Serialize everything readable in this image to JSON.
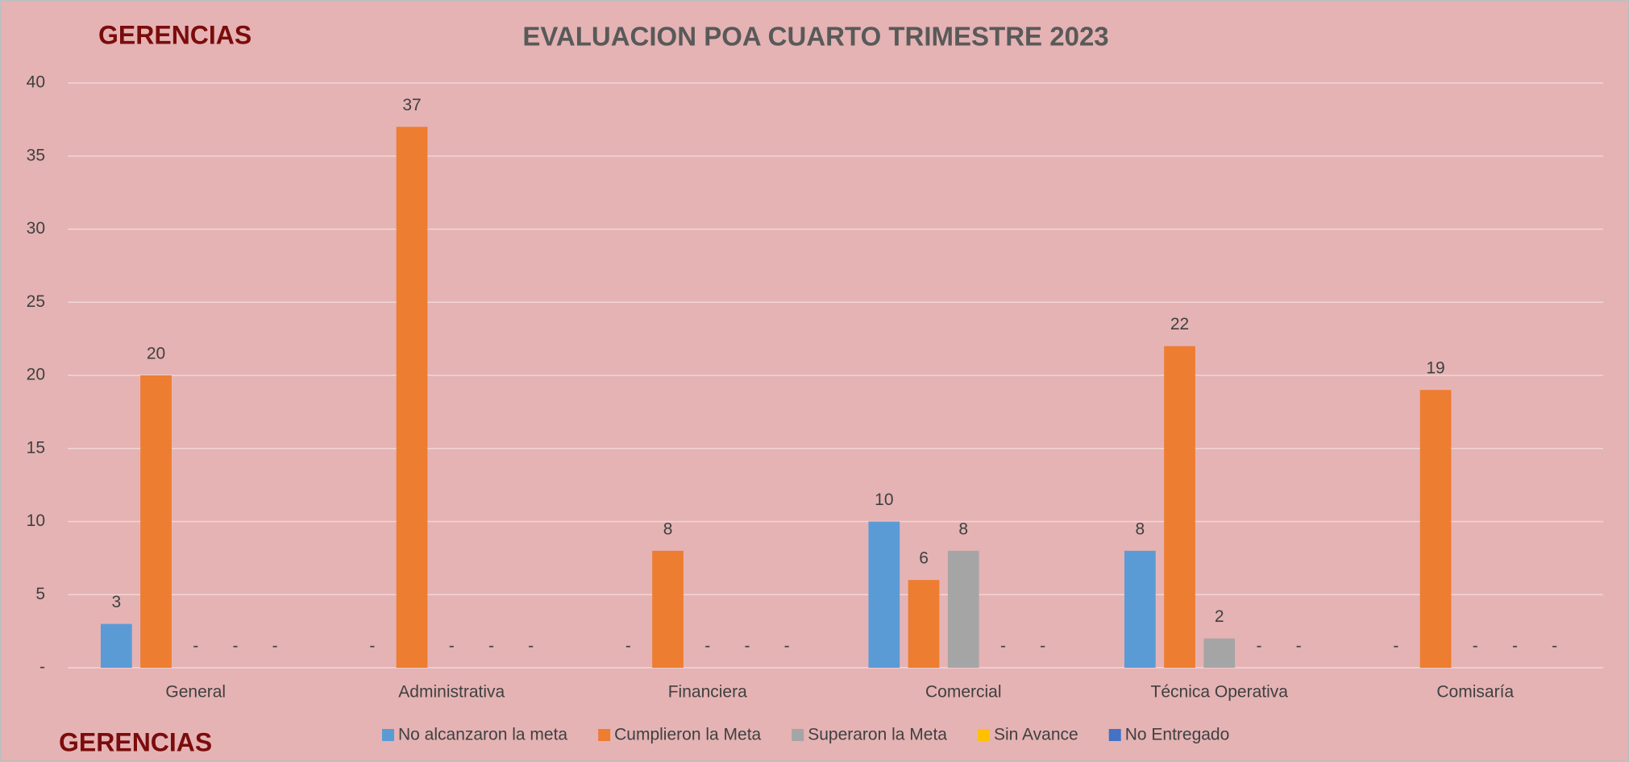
{
  "chart_data": {
    "type": "bar",
    "title": "EVALUACION POA CUARTO TRIMESTRE 2023",
    "annotations": [
      "GERENCIAS",
      "GERENCIAS"
    ],
    "categories": [
      "General",
      "Administrativa",
      "Financiera",
      "Comercial",
      "Técnica Operativa",
      "Comisaría"
    ],
    "series": [
      {
        "name": "No alcanzaron la meta",
        "color": "#5b9bd5",
        "values": [
          3,
          0,
          0,
          10,
          8,
          0
        ],
        "value_labels": [
          "3",
          "-",
          "-",
          "10",
          "8",
          "-"
        ]
      },
      {
        "name": "Cumplieron la Meta",
        "color": "#ed7d31",
        "values": [
          20,
          37,
          8,
          6,
          22,
          19
        ],
        "value_labels": [
          "20",
          "37",
          "8",
          "6",
          "22",
          "19"
        ]
      },
      {
        "name": "Superaron la Meta",
        "color": "#a5a5a5",
        "values": [
          0,
          0,
          0,
          8,
          2,
          0
        ],
        "value_labels": [
          "-",
          "-",
          "-",
          "8",
          "2",
          "-"
        ]
      },
      {
        "name": "Sin Avance",
        "color": "#ffc000",
        "values": [
          0,
          0,
          0,
          0,
          0,
          0
        ],
        "value_labels": [
          "-",
          "-",
          "-",
          "-",
          "-",
          "-"
        ]
      },
      {
        "name": "No Entregado",
        "color": "#4472c4",
        "values": [
          0,
          0,
          0,
          0,
          0,
          0
        ],
        "value_labels": [
          "-",
          "-",
          "-",
          "-",
          "-",
          "-"
        ]
      }
    ],
    "ylim": [
      0,
      40
    ],
    "yticks": [
      {
        "value": 0,
        "label": "-"
      },
      5,
      10,
      15,
      20,
      25,
      30,
      35,
      40
    ],
    "grid": true,
    "legend": "bottom"
  }
}
